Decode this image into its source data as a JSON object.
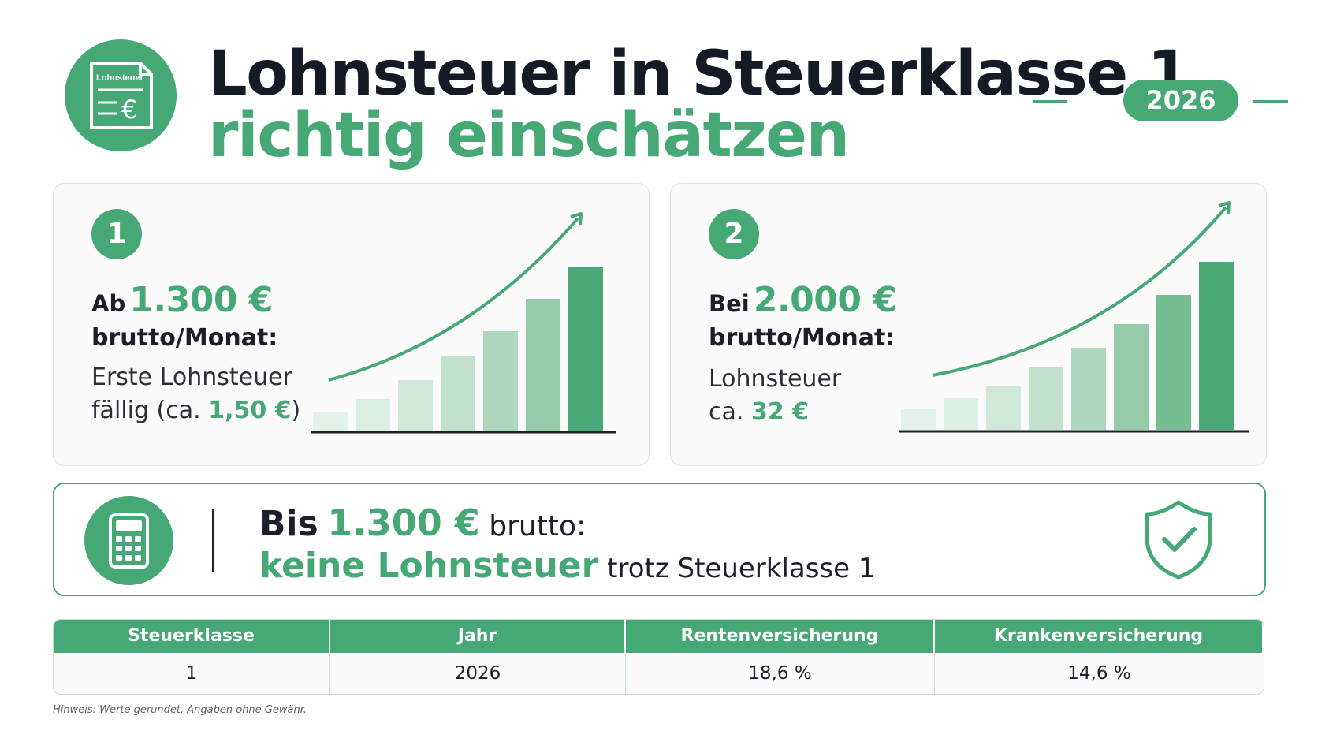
{
  "header": {
    "icon_label": "Lohnsteuer",
    "icon": "tax-document-icon",
    "title_line1": "Lohnsteuer in Steuerklasse 1",
    "title_line2": "richtig einschätzen",
    "year_badge": "2026"
  },
  "cards": [
    {
      "number": "1",
      "lead_prefix": "Ab",
      "lead_amount": "1.300 €",
      "sub": "brutto/Monat:",
      "desc_line1": "Erste Lohnsteuer",
      "desc_line2_prefix": "fällig (ca.",
      "desc_line2_value": "1,50 €",
      "desc_line2_suffix": ")",
      "chart_icon": "rising-bar-chart-icon"
    },
    {
      "number": "2",
      "lead_prefix": "Bei",
      "lead_amount": "2.000 €",
      "sub": "brutto/Monat:",
      "desc_line1": "Lohnsteuer",
      "desc_line2_prefix": "ca.",
      "desc_line2_value": "32 €",
      "desc_line2_suffix": "",
      "chart_icon": "rising-bar-chart-icon"
    }
  ],
  "banner": {
    "icon": "calculator-icon",
    "line1_prefix": "Bis",
    "line1_amount": "1.300 €",
    "line1_suffix": "brutto:",
    "line2_highlight": "keine Lohnsteuer",
    "line2_rest": "trotz Steuerklasse 1",
    "right_icon": "shield-check-icon"
  },
  "table": {
    "headers": [
      "Steuerklasse",
      "Jahr",
      "Rentenversicherung",
      "Krankenversicherung"
    ],
    "row": [
      "1",
      "2026",
      "18,6 %",
      "14,6 %"
    ]
  },
  "note": "Hinweis: Werte gerundet. Angaben ohne Gewähr.",
  "colors": {
    "accent": "#46a874",
    "text": "#1a1f2b",
    "bar_light": "#dbefe2"
  }
}
